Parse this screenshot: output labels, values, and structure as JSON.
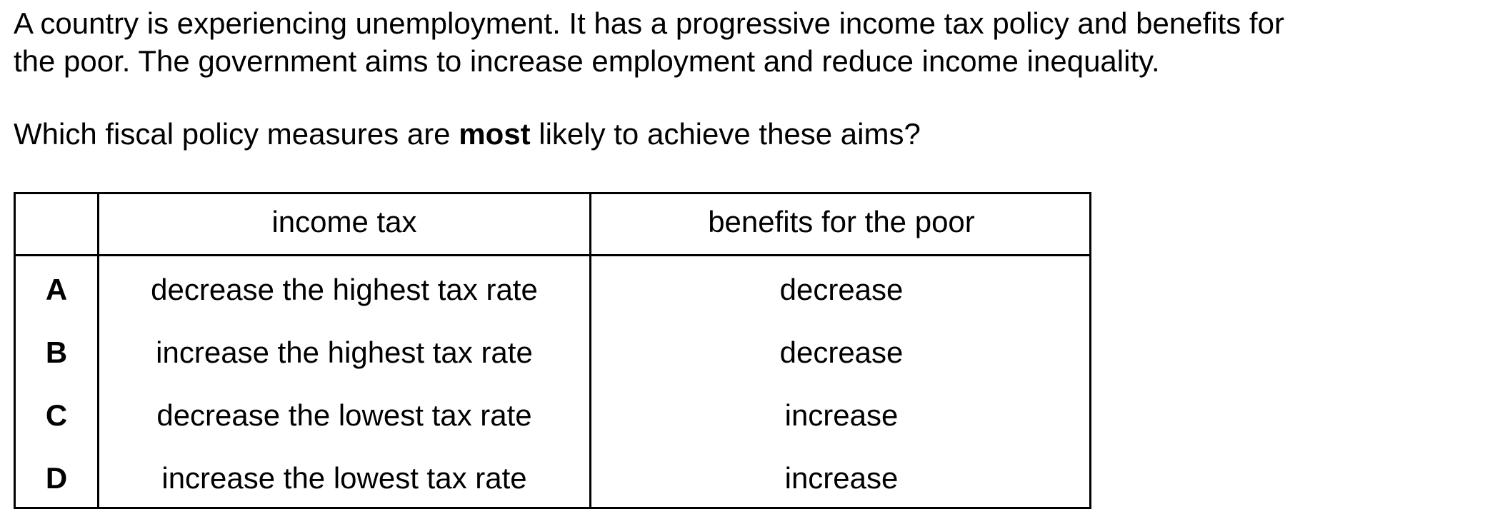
{
  "stem": {
    "line1": "A country is experiencing unemployment. It has a progressive income tax policy and benefits for",
    "line2": "the poor. The government aims to increase employment and reduce income inequality."
  },
  "prompt": {
    "before": "Which fiscal policy measures are ",
    "emphasis": "most",
    "after": " likely to achieve these aims?"
  },
  "table": {
    "headers": [
      "",
      "income tax",
      "benefits for the poor"
    ],
    "rows": [
      {
        "letter": "A",
        "income_tax": "decrease the highest tax rate",
        "benefits": "decrease"
      },
      {
        "letter": "B",
        "income_tax": "increase the highest tax rate",
        "benefits": "decrease"
      },
      {
        "letter": "C",
        "income_tax": "decrease the lowest tax rate",
        "benefits": "increase"
      },
      {
        "letter": "D",
        "income_tax": "increase the lowest tax rate",
        "benefits": "increase"
      }
    ]
  }
}
